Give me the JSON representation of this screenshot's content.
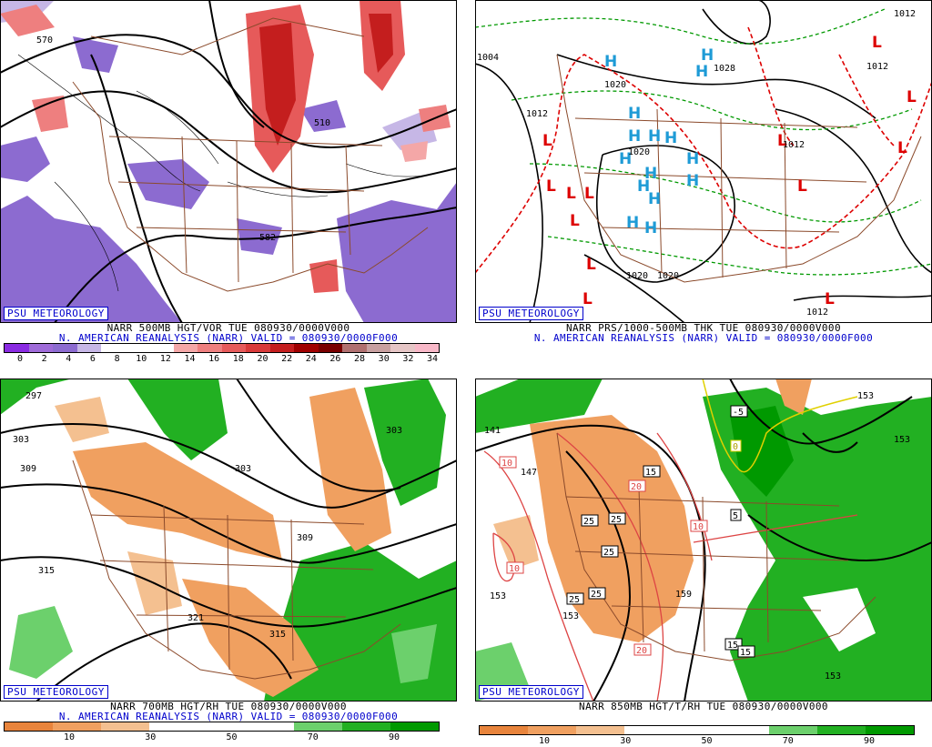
{
  "panels": [
    {
      "id": "500mb",
      "logo": "PSU METEOROLOGY",
      "line1": "NARR 500MB HGT/VOR TUE 080930/0000V000",
      "line2": "N. AMERICAN REANALYSIS (NARR) VALID = 080930/0000F000",
      "colorbar": [
        "#8a2be2",
        "#9f6bd9",
        "#8c6bd0",
        "#c6b7e6",
        "#ffffff",
        "#ffffff",
        "#ffffff",
        "#f4a7a7",
        "#ee7f7f",
        "#e65a5a",
        "#d93a3a",
        "#c41e1e",
        "#a00000",
        "#7a0000",
        "#b07070",
        "#c8a0a0",
        "#e6c6c6",
        "#f8b8c8"
      ],
      "ticks": [
        "0",
        "2",
        "4",
        "6",
        "8",
        "10",
        "12",
        "14",
        "16",
        "18",
        "20",
        "22",
        "24",
        "26",
        "28",
        "30",
        "32",
        "34"
      ],
      "contour_labels": [
        "570",
        "510",
        "582"
      ]
    },
    {
      "id": "sfc",
      "logo": "PSU METEOROLOGY",
      "line1": "NARR PRS/1000-500MB THK TUE 080930/0000V000",
      "line2": "N. AMERICAN REANALYSIS (NARR) VALID = 080930/0000F000",
      "contour_labels": [
        "1004",
        "1012",
        "1020",
        "1020",
        "1028",
        "1012",
        "1012",
        "1020",
        "1020",
        "1012",
        "1012"
      ],
      "high_label": "H",
      "low_label": "L"
    },
    {
      "id": "700mb",
      "logo": "PSU METEOROLOGY",
      "line1": "NARR 700MB HGT/RH TUE 080930/0000V000",
      "line2": "N. AMERICAN REANALYSIS (NARR) VALID = 080930/0000F000",
      "colorbar": [
        "#e8843c",
        "#f0a060",
        "#f4c090",
        "#ffffff",
        "#ffffff",
        "#ffffff",
        "#6cd06c",
        "#22b022",
        "#009900"
      ],
      "ticks": [
        "10",
        "30",
        "50",
        "70",
        "90"
      ],
      "contour_labels": [
        "297",
        "303",
        "309",
        "303",
        "315",
        "309",
        "321",
        "315",
        "303"
      ]
    },
    {
      "id": "850mb",
      "logo": "PSU METEOROLOGY",
      "line1": "NARR 850MB HGT/T/RH TUE 080930/0000V000",
      "colorbar": [
        "#e8843c",
        "#f0a060",
        "#f4c090",
        "#ffffff",
        "#ffffff",
        "#ffffff",
        "#6cd06c",
        "#22b022",
        "#009900"
      ],
      "ticks": [
        "10",
        "30",
        "50",
        "70",
        "90"
      ],
      "contour_labels": [
        "141",
        "147",
        "153",
        "153",
        "153",
        "153",
        "159",
        "153"
      ],
      "temp_labels": [
        "-5",
        "0",
        "5",
        "10",
        "15",
        "20",
        "25",
        "25",
        "25",
        "25",
        "25",
        "10",
        "10",
        "15",
        "15",
        "20"
      ]
    }
  ]
}
